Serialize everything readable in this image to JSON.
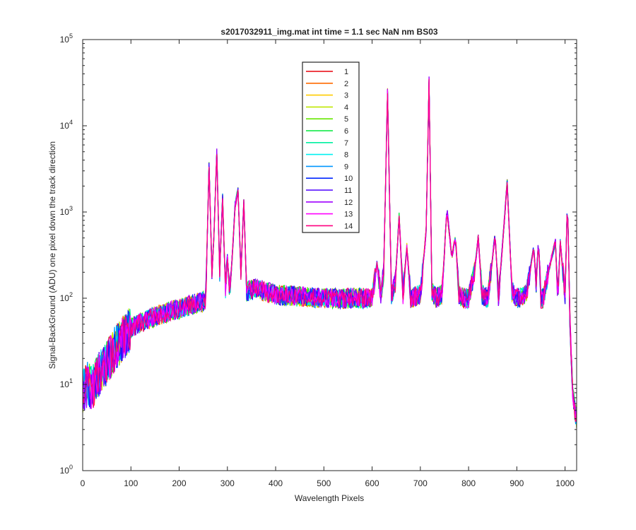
{
  "chart_data": {
    "type": "line",
    "title": "s2017032911_img.mat int time = 1.1 sec  NaN nm BS03",
    "xlabel": "Wavelength Pixels",
    "ylabel": "Signal-BackGround (ADU) one pixel down the track direction",
    "xlim": [
      0,
      1024
    ],
    "ylim": [
      1,
      100000
    ],
    "yscale": "log",
    "grid": false,
    "legend_placement": "top-center",
    "x_ticks": [
      "0",
      "100",
      "200",
      "300",
      "400",
      "500",
      "600",
      "700",
      "800",
      "900",
      "1000"
    ],
    "y_ticks": [
      "10",
      "10",
      "10",
      "10",
      "10",
      "10"
    ],
    "y_tick_exponents": [
      "0",
      "1",
      "2",
      "3",
      "4",
      "5"
    ],
    "base_profile": {
      "x": [
        0,
        10,
        20,
        30,
        40,
        50,
        60,
        70,
        80,
        90,
        100,
        120,
        140,
        160,
        180,
        200,
        220,
        240,
        255,
        262,
        268,
        272,
        278,
        284,
        290,
        296,
        300,
        305,
        310,
        316,
        322,
        328,
        334,
        340,
        360,
        400,
        450,
        500,
        550,
        600,
        610,
        618,
        624,
        632,
        640,
        648,
        656,
        664,
        672,
        680,
        700,
        712,
        718,
        724,
        732,
        745,
        755,
        765,
        773,
        780,
        790,
        800,
        812,
        820,
        828,
        840,
        855,
        862,
        870,
        880,
        890,
        900,
        920,
        935,
        940,
        945,
        950,
        955,
        965,
        980,
        985,
        990,
        1000,
        1005,
        1010,
        1015,
        1020,
        1024
      ],
      "y": [
        8,
        10,
        9,
        12,
        15,
        18,
        22,
        28,
        32,
        38,
        45,
        52,
        58,
        64,
        70,
        75,
        82,
        88,
        95,
        3500,
        200,
        500,
        5000,
        200,
        1500,
        120,
        300,
        110,
        300,
        1200,
        1800,
        200,
        1300,
        120,
        130,
        110,
        105,
        100,
        100,
        100,
        250,
        110,
        200,
        25000,
        110,
        150,
        900,
        110,
        400,
        100,
        110,
        600,
        35000,
        120,
        100,
        110,
        1100,
        300,
        500,
        110,
        100,
        100,
        200,
        500,
        110,
        100,
        550,
        100,
        400,
        2200,
        120,
        100,
        110,
        400,
        150,
        480,
        100,
        100,
        200,
        450,
        100,
        450,
        110,
        1500,
        60,
        10,
        5,
        4
      ]
    },
    "series": [
      {
        "name": "1",
        "color": "#e8000b"
      },
      {
        "name": "2",
        "color": "#ff6a00"
      },
      {
        "name": "3",
        "color": "#ffcc00"
      },
      {
        "name": "4",
        "color": "#bfe700"
      },
      {
        "name": "5",
        "color": "#66e800"
      },
      {
        "name": "6",
        "color": "#00e83a"
      },
      {
        "name": "7",
        "color": "#00f0a0"
      },
      {
        "name": "8",
        "color": "#00f0f0"
      },
      {
        "name": "9",
        "color": "#0096ff"
      },
      {
        "name": "10",
        "color": "#0026ff"
      },
      {
        "name": "11",
        "color": "#4b00ff"
      },
      {
        "name": "12",
        "color": "#9f00ff"
      },
      {
        "name": "13",
        "color": "#ff00ff"
      },
      {
        "name": "14",
        "color": "#ff0080"
      }
    ]
  }
}
